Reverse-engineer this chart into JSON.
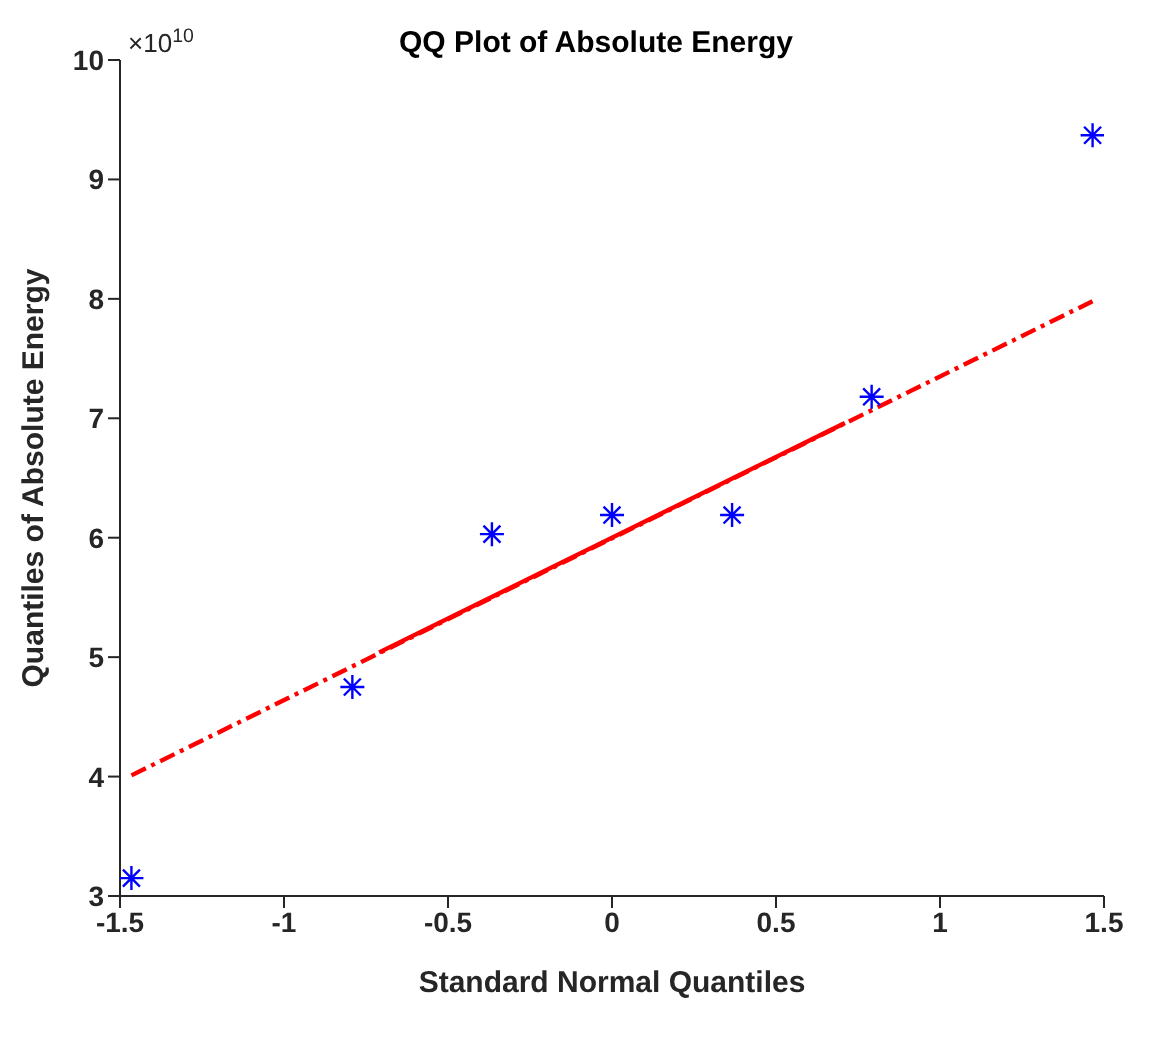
{
  "chart_data": {
    "type": "scatter",
    "title": "QQ Plot of Absolute Energy",
    "xlabel": "Standard Normal Quantiles",
    "ylabel": "Quantiles of Absolute Energy",
    "annotations": [
      "×10$^{10}$"
    ],
    "x": [
      -1.4652,
      -0.7916,
      -0.3661,
      0,
      0.3661,
      0.7916,
      1.4652
    ],
    "series": [
      {
        "color": "#0000ff",
        "marker": "cross",
        "values": [
          3.15,
          4.75,
          6.03,
          6.19,
          6.19,
          7.18,
          9.37
        ]
      },
      {
        "type": "line",
        "color": "#ff0000",
        "line_style": "dashed",
        "marker": "none",
        "x": [
          -1.465,
          1.465
        ],
        "values": [
          4.01,
          7.98
        ]
      },
      {
        "type": "line",
        "color": "#ff0000",
        "line_style": "solid",
        "marker": "none",
        "x": [
          -0.71,
          0.71
        ],
        "values": [
          5.04,
          6.96
        ]
      }
    ],
    "xlim": [
      -1.5,
      1.5
    ],
    "xticks": [
      -1.5,
      -1,
      -0.5,
      0,
      0.5,
      1,
      1.5
    ],
    "ylim": [
      3,
      10
    ],
    "yticks": [
      3,
      4,
      5,
      6,
      7,
      8,
      9,
      10
    ],
    "grid": false,
    "legend": false
  }
}
